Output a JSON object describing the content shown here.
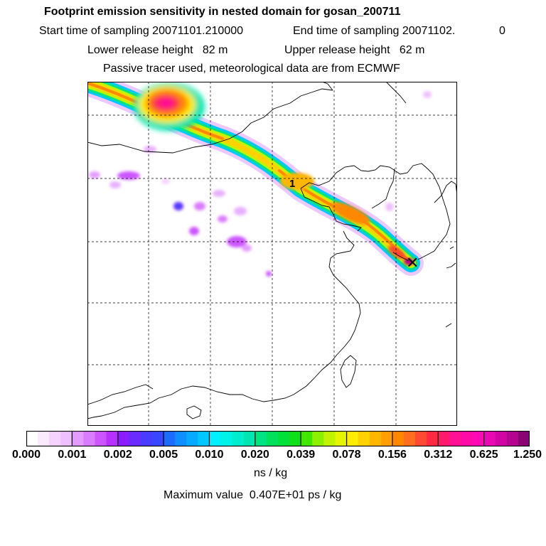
{
  "header": {
    "title": "Footprint emission sensitivity in nested domain for gosan_200711",
    "start_label": "Start time of sampling 20071101.210000",
    "end_label": "End time of sampling 20071102.",
    "end_suffix": "0",
    "lower_label": "Lower release height   82 m",
    "upper_label": "Upper release height   62 m",
    "tracer_note": "Passive tracer used, meteorological data are from ECMWF"
  },
  "map": {
    "marker_label": "1",
    "receptor_symbol": "✕"
  },
  "colorbar": {
    "ticks": [
      "0.000",
      "0.001",
      "0.002",
      "0.005",
      "0.010",
      "0.020",
      "0.039",
      "0.078",
      "0.156",
      "0.312",
      "0.625",
      "1.250"
    ],
    "colors": [
      "#ffffff",
      "#fbe9ff",
      "#f5d2ff",
      "#eec0ff",
      "#e39bff",
      "#d97cff",
      "#cc55ff",
      "#b830ff",
      "#8a1dff",
      "#6a2bff",
      "#4a3cff",
      "#3a46ff",
      "#1e6cff",
      "#0f8fff",
      "#06aaff",
      "#00c8ff",
      "#00f0ff",
      "#00f2e6",
      "#00ecca",
      "#00e6b0",
      "#00e484",
      "#00e05a",
      "#00e23a",
      "#10e018",
      "#40e800",
      "#8cf000",
      "#c0f400",
      "#e4f600",
      "#ffec00",
      "#ffd200",
      "#ffb600",
      "#ffa000",
      "#ff8800",
      "#ff6e1e",
      "#ff4a32",
      "#ff2a40",
      "#ff1a6c",
      "#ff1094",
      "#ff0aa6",
      "#ff08b6",
      "#e808b4",
      "#d006a4",
      "#b40490",
      "#8a0474"
    ],
    "unit": "ns / kg",
    "max_value_label": "Maximum value  0.407E+01 ps / kg"
  }
}
